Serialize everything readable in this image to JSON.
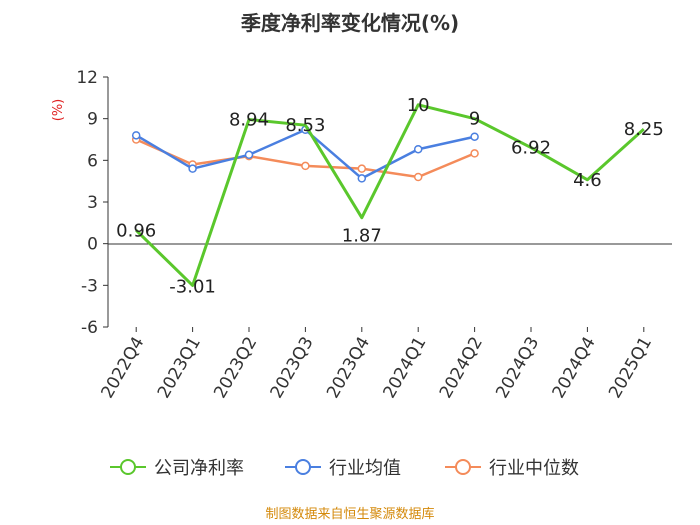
{
  "chart_data": {
    "type": "line",
    "title": "季度净利率变化情况(%)",
    "ylabel": "(%)",
    "xlabel": "",
    "categories": [
      "2022Q4",
      "2023Q1",
      "2023Q2",
      "2023Q3",
      "2023Q4",
      "2024Q1",
      "2024Q2",
      "2024Q3",
      "2024Q4",
      "2025Q1"
    ],
    "yticks": [
      "12",
      "9",
      "6",
      "3",
      "0",
      "-3",
      "-6"
    ],
    "ylim": [
      -6,
      12
    ],
    "grid": false,
    "legend_position": "bottom",
    "series": [
      {
        "name": "公司净利率",
        "color": "#5ac72c",
        "values": [
          0.96,
          -3.01,
          8.94,
          8.53,
          1.87,
          10,
          9,
          6.92,
          4.6,
          8.25
        ],
        "labels": [
          "0.96",
          "-3.01",
          "8.94",
          "8.53",
          "1.87",
          "10",
          "9",
          "6.92",
          "4.6",
          "8.25"
        ]
      },
      {
        "name": "行业均值",
        "color": "#4a7fe0",
        "values": [
          7.8,
          5.4,
          6.4,
          8.2,
          4.7,
          6.8,
          7.7,
          null,
          null,
          null
        ]
      },
      {
        "name": "行业中位数",
        "color": "#f48b5a",
        "values": [
          7.5,
          5.7,
          6.3,
          5.6,
          5.4,
          4.8,
          6.5,
          null,
          null,
          null
        ]
      }
    ]
  },
  "source_text": "制图数据来自恒生聚源数据库"
}
